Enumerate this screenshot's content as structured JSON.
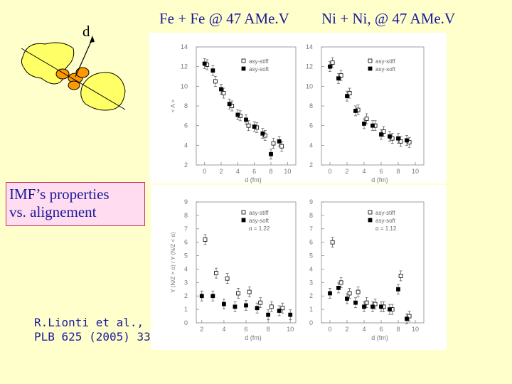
{
  "titles": {
    "left": "Fe + Fe @ 47 AMe.V",
    "right": "Ni + Ni, @ 47 AMe.V"
  },
  "diagram": {
    "label": "d"
  },
  "imf_box": {
    "line1": "IMF’s  properties",
    "line2": "vs. alignement"
  },
  "reference": {
    "line1": "R.Lionti et al.,",
    "line2": "PLB 625 (2005) 33"
  },
  "chart_data": [
    {
      "type": "scatter",
      "panel": "top-left",
      "ylabel": "< A >",
      "xlabel": "d (fm)",
      "xlim": [
        -1,
        11
      ],
      "ylim": [
        2,
        14
      ],
      "xticks": [
        0,
        2,
        4,
        6,
        8,
        10
      ],
      "yticks": [
        2,
        4,
        6,
        8,
        10,
        12,
        14
      ],
      "legend": [
        "asy-stiff",
        "asy-soft"
      ],
      "series": [
        {
          "name": "asy-stiff",
          "marker": "open-square",
          "x": [
            0.3,
            1.3,
            2.3,
            3.3,
            4.3,
            5.3,
            6.3,
            7.3,
            8.3,
            9.3
          ],
          "y": [
            12.2,
            10.5,
            9.3,
            8.0,
            7.0,
            6.0,
            5.8,
            5.0,
            4.2,
            3.9
          ]
        },
        {
          "name": "asy-soft",
          "marker": "filled-square",
          "x": [
            0.0,
            1.0,
            2.0,
            3.0,
            4.0,
            5.0,
            6.0,
            7.0,
            8.0,
            9.0
          ],
          "y": [
            12.3,
            11.6,
            9.7,
            8.2,
            7.1,
            6.6,
            5.9,
            5.2,
            3.1,
            4.4
          ]
        }
      ]
    },
    {
      "type": "scatter",
      "panel": "top-right",
      "xlabel": "d (fm)",
      "xlim": [
        -1,
        11
      ],
      "ylim": [
        2,
        14
      ],
      "xticks": [
        0,
        2,
        4,
        6,
        8,
        10
      ],
      "yticks": [
        2,
        4,
        6,
        8,
        10,
        12,
        14
      ],
      "legend": [
        "asy-stiff",
        "asy-soft"
      ],
      "series": [
        {
          "name": "asy-stiff",
          "marker": "open-square",
          "x": [
            0.3,
            1.3,
            2.3,
            3.3,
            4.3,
            5.3,
            6.3,
            7.3,
            8.3,
            9.3
          ],
          "y": [
            12.4,
            11.1,
            9.3,
            7.6,
            6.7,
            6.0,
            5.4,
            4.7,
            4.4,
            4.3
          ]
        },
        {
          "name": "asy-soft",
          "marker": "filled-square",
          "x": [
            0.0,
            1.0,
            2.0,
            3.0,
            4.0,
            5.0,
            6.0,
            7.0,
            8.0,
            9.0
          ],
          "y": [
            12.0,
            10.8,
            9.0,
            7.5,
            6.2,
            6.0,
            5.1,
            4.9,
            4.7,
            4.5
          ]
        }
      ]
    },
    {
      "type": "scatter",
      "panel": "bottom-left",
      "ylabel": "Y (N/Z > α) / Y (N/Z < α)",
      "xlabel": "d (fm)",
      "xlim": [
        1.5,
        10.5
      ],
      "ylim": [
        0,
        9
      ],
      "xticks": [
        2,
        4,
        6,
        8,
        10
      ],
      "yticks": [
        0,
        1,
        2,
        3,
        4,
        5,
        6,
        7,
        8,
        9
      ],
      "legend": [
        "asy-stiff",
        "asy-soft",
        "α = 1.22"
      ],
      "series": [
        {
          "name": "asy-stiff",
          "marker": "open-square",
          "x": [
            2.3,
            3.3,
            4.3,
            5.3,
            6.3,
            7.3,
            8.3,
            9.3
          ],
          "y": [
            6.2,
            3.7,
            3.3,
            2.2,
            2.3,
            1.5,
            1.2,
            1.1
          ]
        },
        {
          "name": "asy-soft",
          "marker": "filled-square",
          "x": [
            2.0,
            3.0,
            4.0,
            5.0,
            6.0,
            7.0,
            8.0,
            9.0,
            10.0
          ],
          "y": [
            2.0,
            2.0,
            1.4,
            1.2,
            1.3,
            1.1,
            0.6,
            0.9,
            0.6
          ]
        }
      ]
    },
    {
      "type": "scatter",
      "panel": "bottom-right",
      "xlabel": "d (fm)",
      "xlim": [
        -1,
        11
      ],
      "ylim": [
        0,
        9
      ],
      "xticks": [
        0,
        2,
        4,
        6,
        8,
        10
      ],
      "yticks": [
        0,
        1,
        2,
        3,
        4,
        5,
        6,
        7,
        8,
        9
      ],
      "legend": [
        "asy-stiff",
        "asy-soft",
        "α = 1.12"
      ],
      "series": [
        {
          "name": "asy-stiff",
          "marker": "open-square",
          "x": [
            0.3,
            1.3,
            2.3,
            3.3,
            4.3,
            5.3,
            6.3,
            7.3,
            8.3,
            9.3
          ],
          "y": [
            6.0,
            3.0,
            2.2,
            2.3,
            1.5,
            1.4,
            1.2,
            1.0,
            3.5,
            0.5
          ]
        },
        {
          "name": "asy-soft",
          "marker": "filled-square",
          "x": [
            0.0,
            1.0,
            2.0,
            3.0,
            4.0,
            5.0,
            6.0,
            7.0,
            8.0,
            9.0
          ],
          "y": [
            2.2,
            2.6,
            1.8,
            1.5,
            1.2,
            1.2,
            1.2,
            1.0,
            2.5,
            0.3
          ]
        }
      ]
    }
  ],
  "colors": {
    "background": "#ffffcc",
    "title_text": "#1a1a99",
    "nucleus_yellow": "#ffff66",
    "fragment_orange": "#ff9900",
    "imf_box_fill": "#ffdcf0",
    "imf_box_border": "#cc3366"
  }
}
